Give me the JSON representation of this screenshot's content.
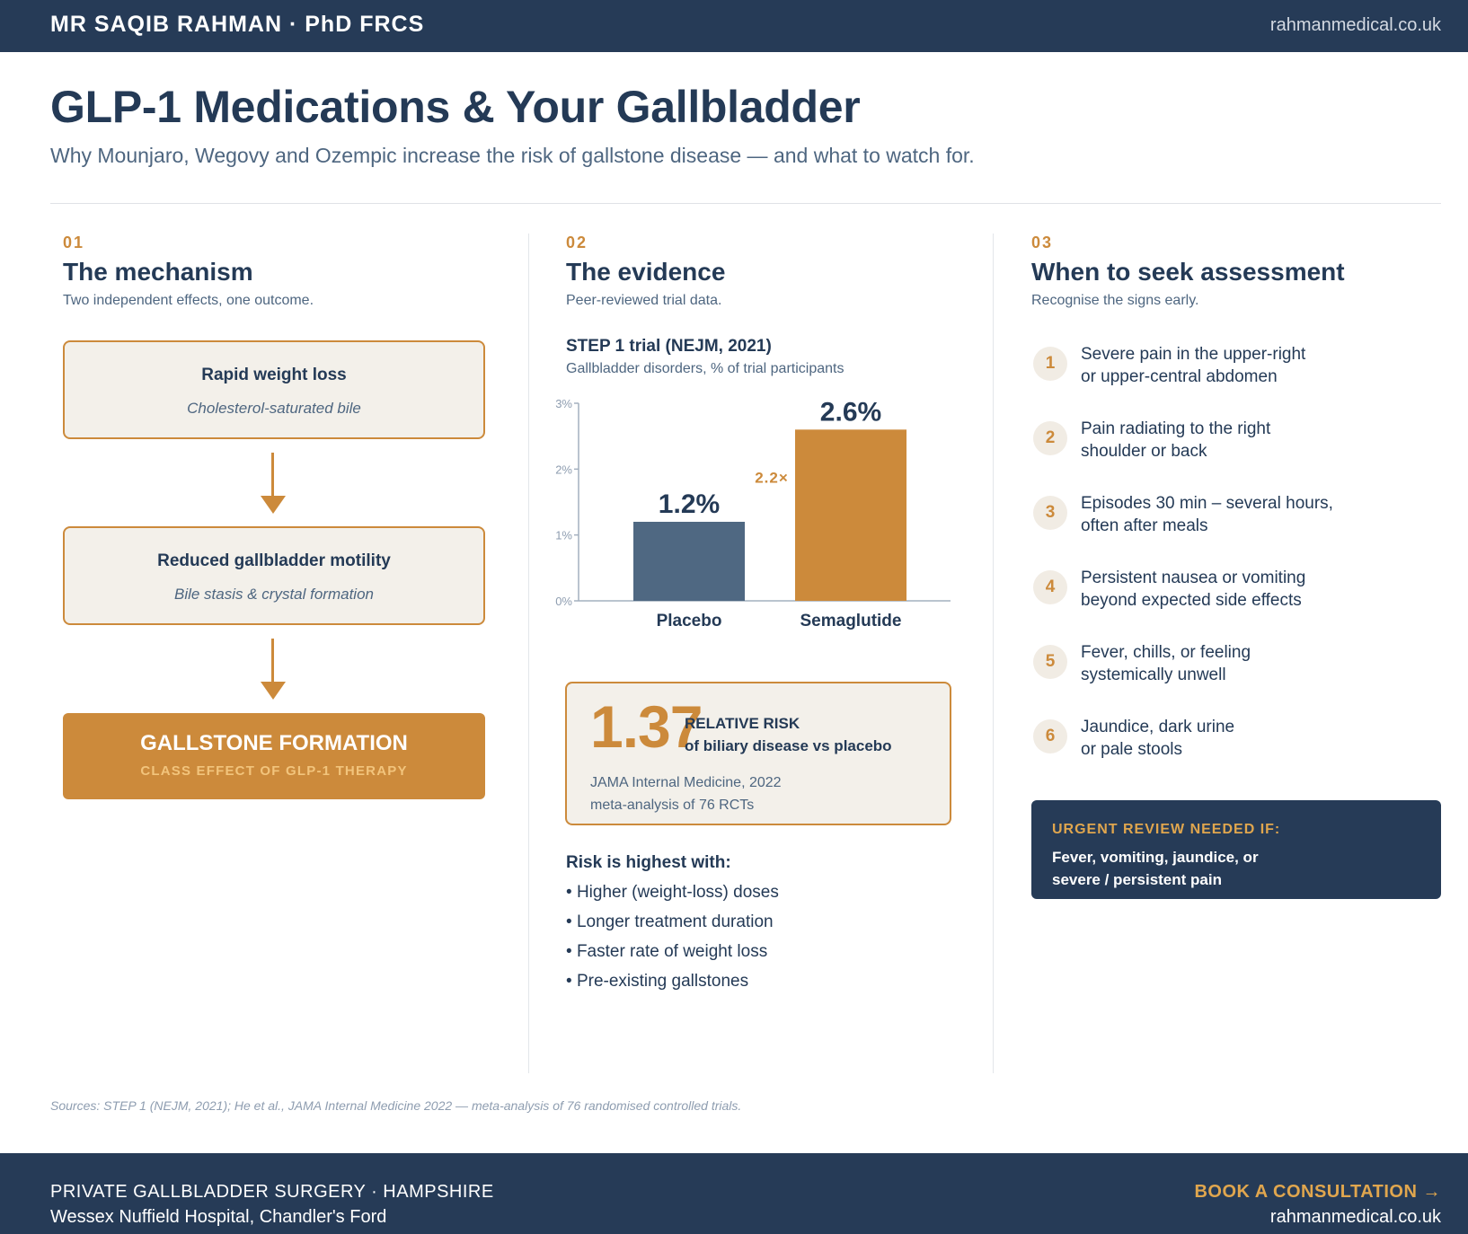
{
  "header": {
    "brand": "MR SAQIB RAHMAN · PhD FRCS",
    "site": "rahmanmedical.co.uk"
  },
  "hero": {
    "title": "GLP-1 Medications & Your Gallbladder",
    "subtitle": "Why Mounjaro, Wegovy and Ozempic increase the risk of gallstone disease — and what to watch for."
  },
  "mechanism": {
    "num": "01",
    "title": "The mechanism",
    "sub": "Two independent effects, one outcome.",
    "steps": [
      {
        "heading": "Rapid weight loss",
        "detail": "Cholesterol-saturated bile"
      },
      {
        "heading": "Reduced gallbladder motility",
        "detail": "Bile stasis & crystal formation"
      }
    ],
    "outcome": {
      "heading": "GALLSTONE FORMATION",
      "detail": "CLASS EFFECT OF GLP-1 THERAPY"
    }
  },
  "evidence": {
    "num": "02",
    "title": "The evidence",
    "sub": "Peer-reviewed trial data.",
    "chart_title": "STEP 1 trial (NEJM, 2021)",
    "chart_sub": "Gallbladder disorders, % of trial participants",
    "relative": {
      "value": "1.37",
      "label1": "RELATIVE RISK",
      "label2": "of biliary disease vs placebo",
      "source1": "JAMA Internal Medicine, 2022",
      "source2": "meta-analysis of 76 RCTs"
    },
    "risk_title": "Risk is highest with:",
    "risk_items": [
      "Higher (weight-loss) doses",
      "Longer treatment duration",
      "Faster rate of weight loss",
      "Pre-existing gallstones"
    ]
  },
  "chart_data": {
    "type": "bar",
    "title": "STEP 1 trial (NEJM, 2021)",
    "subtitle": "Gallbladder disorders, % of trial participants",
    "categories": [
      "Placebo",
      "Semaglutide"
    ],
    "values": [
      1.2,
      2.6
    ],
    "value_labels": [
      "1.2%",
      "2.6%"
    ],
    "colors": [
      "#4f6882",
      "#cc8a3b"
    ],
    "ylim": [
      0,
      3
    ],
    "yticks": [
      0,
      1,
      2,
      3
    ],
    "ytick_labels": [
      "0%",
      "1%",
      "2%",
      "3%"
    ],
    "annotation": "2.2×",
    "xlabel": "",
    "ylabel": ""
  },
  "assessment": {
    "num": "03",
    "title": "When to seek assessment",
    "sub": "Recognise the signs early.",
    "signs": [
      {
        "n": "1",
        "line1": "Severe pain in the upper-right",
        "line2": "or upper-central abdomen"
      },
      {
        "n": "2",
        "line1": "Pain radiating to the right",
        "line2": "shoulder or back"
      },
      {
        "n": "3",
        "line1": "Episodes 30 min – several hours,",
        "line2": "often after meals"
      },
      {
        "n": "4",
        "line1": "Persistent nausea or vomiting",
        "line2": "beyond expected side effects"
      },
      {
        "n": "5",
        "line1": "Fever, chills, or feeling",
        "line2": "systemically unwell"
      },
      {
        "n": "6",
        "line1": "Jaundice, dark urine",
        "line2": "or pale stools"
      }
    ],
    "urgent": {
      "heading": "URGENT REVIEW NEEDED IF:",
      "line1": "Fever, vomiting, jaundice, or",
      "line2": "severe / persistent pain"
    }
  },
  "sources": "Sources: STEP 1 (NEJM, 2021); He et al., JAMA Internal Medicine 2022 — meta-analysis of 76 randomised controlled trials.",
  "footer": {
    "line1": "PRIVATE GALLBLADDER SURGERY · HAMPSHIRE",
    "line2": "Wessex Nuffield Hospital, Chandler's Ford",
    "cta": "BOOK A CONSULTATION →",
    "site": "rahmanmedical.co.uk"
  },
  "colors": {
    "navy": "#263b57",
    "accent": "#cc8a3b",
    "slate": "#4f6882",
    "cream": "#f3f0ea"
  }
}
